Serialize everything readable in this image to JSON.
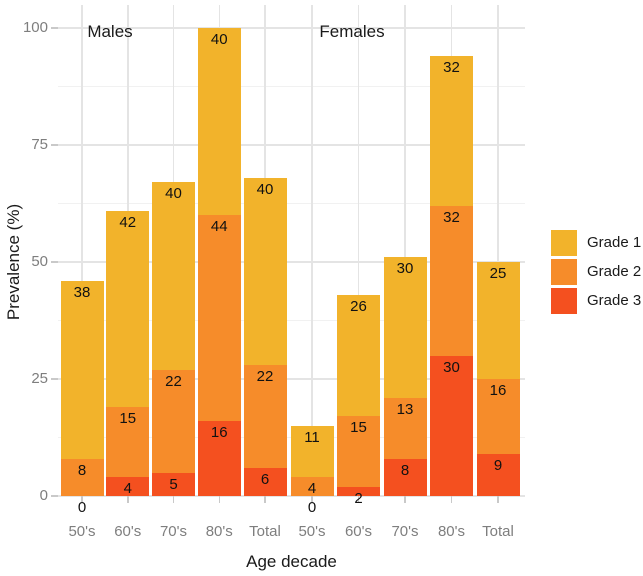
{
  "chart_data": {
    "type": "bar",
    "subtype": "stacked",
    "title": "",
    "ylabel": "Prevalence (%)",
    "xlabel": "Age decade",
    "ylim": [
      0,
      100
    ],
    "yticks": [
      0,
      25,
      50,
      75,
      100
    ],
    "grid": true,
    "legend_position": "right",
    "categories": [
      "50's",
      "60's",
      "70's",
      "80's",
      "Total"
    ],
    "groups": [
      {
        "label": "Males",
        "series": [
          {
            "name": "Grade 1",
            "values": [
              38,
              42,
              40,
              40,
              40
            ]
          },
          {
            "name": "Grade 2",
            "values": [
              8,
              15,
              22,
              44,
              22
            ]
          },
          {
            "name": "Grade 3",
            "values": [
              0,
              4,
              5,
              16,
              6
            ]
          }
        ]
      },
      {
        "label": "Females",
        "series": [
          {
            "name": "Grade 1",
            "values": [
              11,
              26,
              30,
              32,
              25
            ]
          },
          {
            "name": "Grade 2",
            "values": [
              4,
              15,
              13,
              32,
              16
            ]
          },
          {
            "name": "Grade 3",
            "values": [
              0,
              2,
              8,
              30,
              9
            ]
          }
        ]
      }
    ],
    "legend": {
      "entries": [
        {
          "label": "Grade 1",
          "color": "#F2B32B"
        },
        {
          "label": "Grade 2",
          "color": "#F68C2A"
        },
        {
          "label": "Grade 3",
          "color": "#F4501F"
        }
      ]
    }
  }
}
